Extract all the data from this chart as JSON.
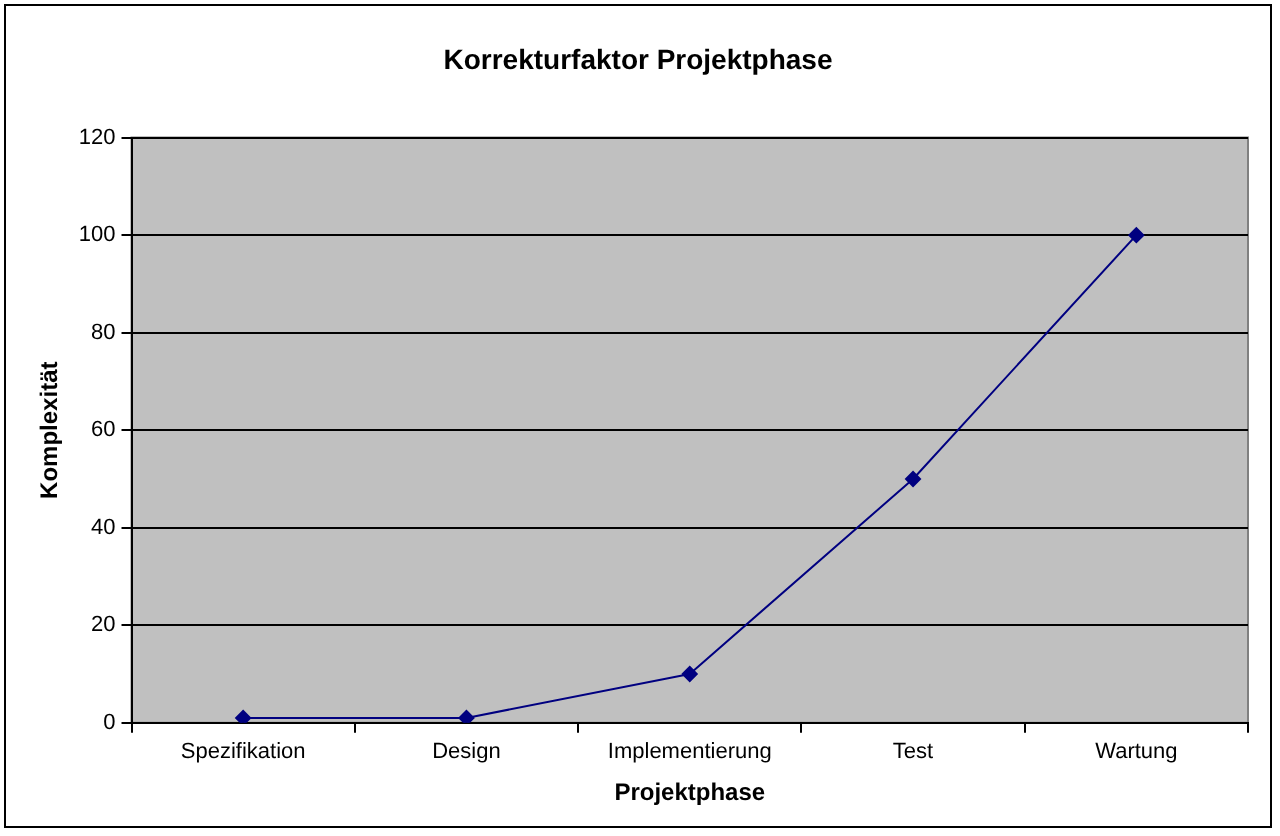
{
  "chart_data": {
    "type": "line",
    "title": "Korrekturfaktor Projektphase",
    "xlabel": "Projektphase",
    "ylabel": "Komplexität",
    "categories": [
      "Spezifikation",
      "Design",
      "Implementierung",
      "Test",
      "Wartung"
    ],
    "series": [
      {
        "color": "#000080",
        "values": [
          1,
          1,
          10,
          50,
          100
        ]
      }
    ],
    "ylim": [
      0,
      120
    ],
    "yticks": [
      0,
      20,
      40,
      60,
      80,
      100,
      120
    ],
    "grid": "y",
    "legend": false,
    "marker": "diamond",
    "line_style": "solid"
  }
}
